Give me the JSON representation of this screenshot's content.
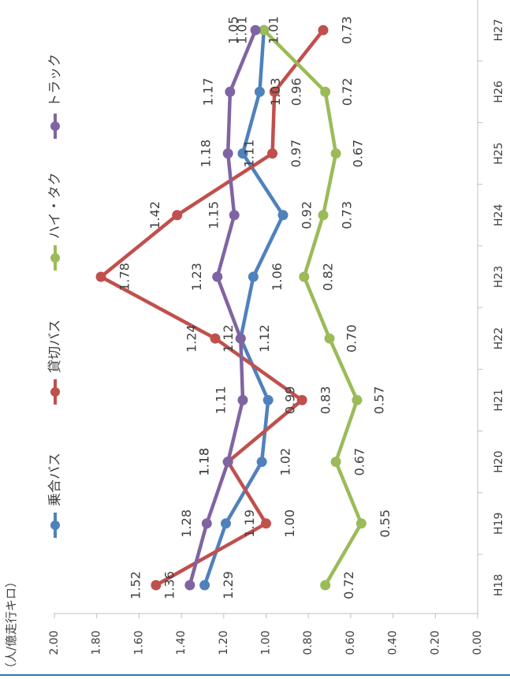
{
  "chart_data": {
    "type": "line",
    "title": "",
    "unit_label": "（人/億走行キロ）",
    "categories": [
      "H18",
      "H19",
      "H20",
      "H21",
      "H22",
      "H23",
      "H24",
      "H25",
      "H26",
      "H27"
    ],
    "y_ticks": [
      "0.00",
      "0.20",
      "0.40",
      "0.60",
      "0.80",
      "1.00",
      "1.20",
      "1.40",
      "1.60",
      "1.80",
      "2.00"
    ],
    "ylim": [
      0,
      2.0
    ],
    "legend_position": "top",
    "series": [
      {
        "name": "乗合バス",
        "color": "#4F81BD",
        "values": [
          1.29,
          1.19,
          1.02,
          0.99,
          1.12,
          1.06,
          0.92,
          1.11,
          1.03,
          1.01
        ],
        "labels": [
          "1.29",
          "1.19",
          "1.02",
          "0.99",
          "1.12",
          "1.06",
          "0.92",
          "1.11",
          "1.03",
          "1.01"
        ]
      },
      {
        "name": "貸切バス",
        "color": "#C0504D",
        "values": [
          1.52,
          1.0,
          1.18,
          0.83,
          1.24,
          1.78,
          1.42,
          0.97,
          0.96,
          0.73
        ],
        "labels": [
          "1.52",
          "1.00",
          "1.18",
          "0.83",
          "1.24",
          "1.78",
          "1.42",
          "0.97",
          "0.96",
          "0.73"
        ]
      },
      {
        "name": "ハイ・タク",
        "color": "#9BBB59",
        "values": [
          0.72,
          0.55,
          0.67,
          0.57,
          0.7,
          0.82,
          0.73,
          0.67,
          0.72,
          1.01
        ],
        "labels": [
          "0.72",
          "0.55",
          "0.67",
          "0.57",
          "0.70",
          "0.82",
          "0.73",
          "0.67",
          "0.72",
          "1.01"
        ]
      },
      {
        "name": "トラック",
        "color": "#8064A2",
        "values": [
          1.36,
          1.28,
          1.18,
          1.11,
          1.12,
          1.23,
          1.15,
          1.18,
          1.17,
          1.05
        ],
        "labels": [
          "1.36",
          "1.28",
          "1.18",
          "1.11",
          "1.12",
          "1.23",
          "1.15",
          "1.18",
          "1.17",
          "1.05"
        ]
      }
    ]
  }
}
